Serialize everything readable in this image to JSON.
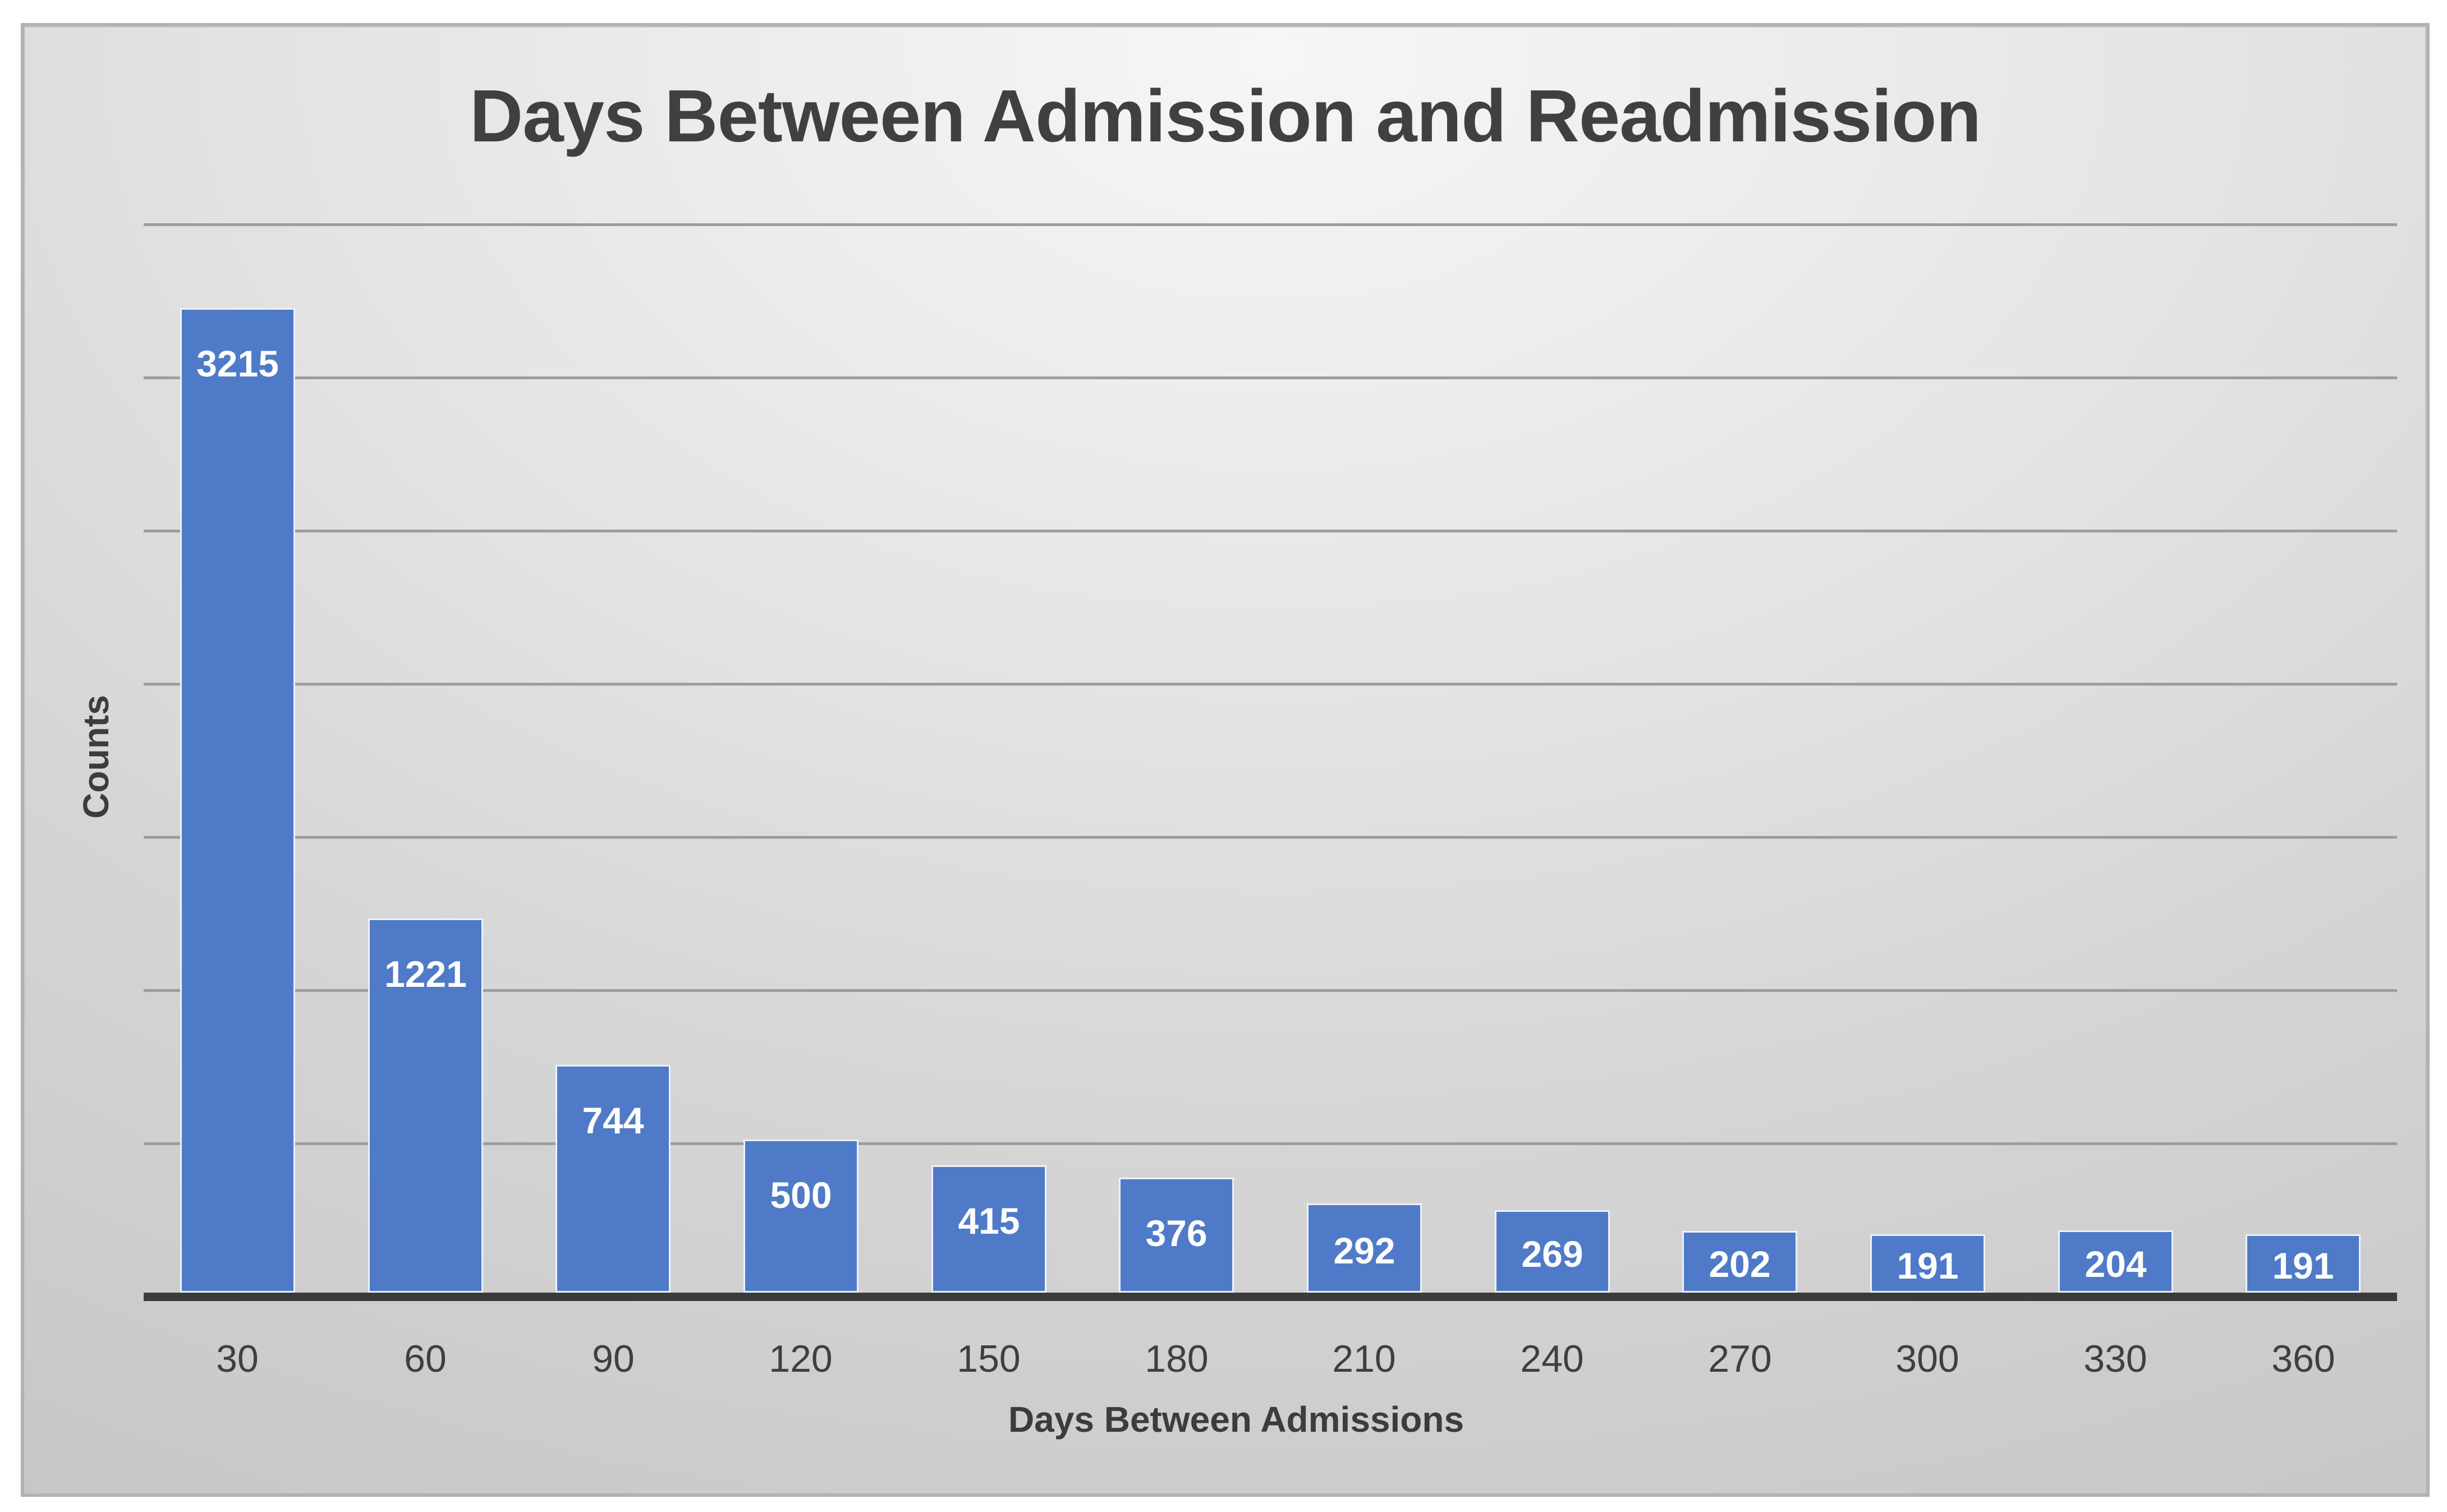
{
  "chart_data": {
    "type": "bar",
    "title": "Days Between Admission and Readmission",
    "xlabel": "Days Between Admissions",
    "ylabel": "Counts",
    "categories": [
      "30",
      "60",
      "90",
      "120",
      "150",
      "180",
      "210",
      "240",
      "270",
      "300",
      "330",
      "360"
    ],
    "values": [
      3215,
      1221,
      744,
      500,
      415,
      376,
      292,
      269,
      202,
      191,
      204,
      191
    ],
    "ylim": [
      0,
      3500
    ],
    "gridline_step": 500,
    "grid": "horizontal gridlines on",
    "legend": "none",
    "value_label_position": "inside end of bar, white bold"
  },
  "colors": {
    "bar_fill": "#4e7ac7",
    "bar_outline": "#edf2fa",
    "gridline": "#9d9d9d",
    "axis_line": "#3b3b3b",
    "title_text": "#404040",
    "axis_text": "#3f3f3f",
    "value_label_text": "#ffffff",
    "panel_border": "#b2b2b2"
  }
}
